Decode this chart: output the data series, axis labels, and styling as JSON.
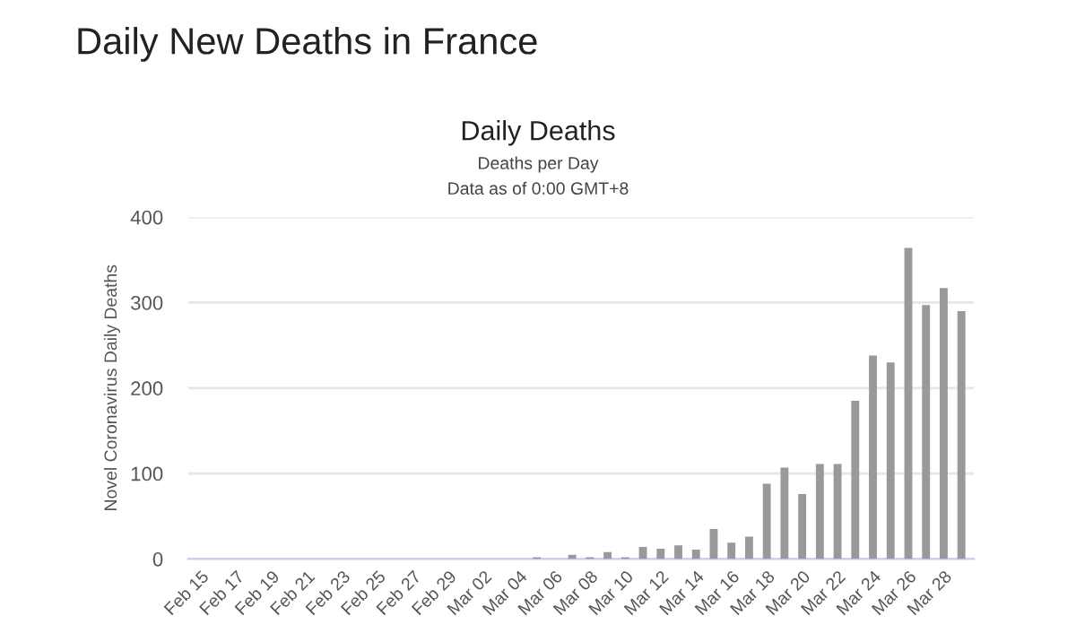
{
  "chart_data": {
    "type": "bar",
    "title": "Daily New Deaths in France",
    "subtitle": "Daily Deaths",
    "annotations": [
      "Deaths per Day",
      "Data as of 0:00 GMT+8"
    ],
    "ylabel": "Novel Coronavirus Daily Deaths",
    "categories": [
      "Feb 15",
      null,
      "Feb 17",
      null,
      "Feb 19",
      null,
      "Feb 21",
      null,
      "Feb 23",
      null,
      "Feb 25",
      null,
      "Feb 27",
      null,
      "Feb 29",
      null,
      "Mar 02",
      null,
      "Mar 04",
      null,
      "Mar 06",
      null,
      "Mar 08",
      null,
      "Mar 10",
      null,
      "Mar 12",
      null,
      "Mar 14",
      null,
      "Mar 16",
      null,
      "Mar 18",
      null,
      "Mar 20",
      null,
      "Mar 22",
      null,
      "Mar 24",
      null,
      "Mar 26",
      null,
      "Mar 28",
      null
    ],
    "values": [
      0,
      0,
      0,
      0,
      0,
      0,
      0,
      0,
      0,
      0,
      0,
      0,
      0,
      0,
      0,
      0,
      0,
      0,
      0,
      2,
      0,
      5,
      2,
      8,
      2,
      14,
      12,
      16,
      11,
      35,
      19,
      26,
      88,
      107,
      76,
      111,
      111,
      185,
      238,
      230,
      364,
      297,
      317,
      290
    ],
    "color": "#999999",
    "ylim": [
      0,
      400
    ],
    "yticks": [
      0,
      100,
      200,
      300,
      400
    ],
    "grid": "y"
  }
}
